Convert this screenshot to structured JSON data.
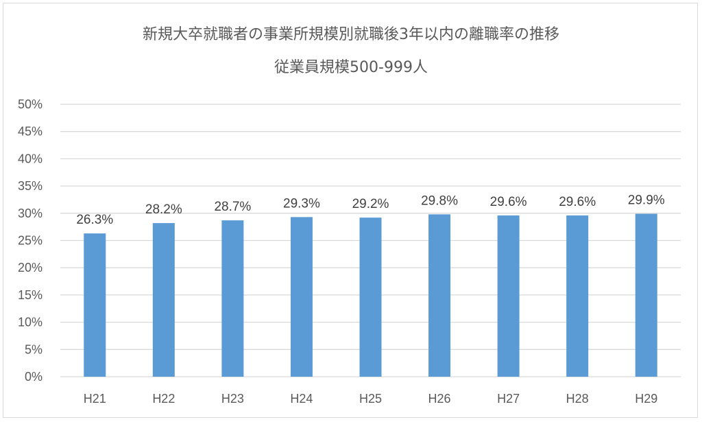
{
  "chart_data": {
    "type": "bar",
    "title": "新規大卒就職者の事業所規模別就職後3年以内の離職率の推移",
    "subtitle": "従業員規模500-999人",
    "categories": [
      "H21",
      "H22",
      "H23",
      "H24",
      "H25",
      "H26",
      "H27",
      "H28",
      "H29"
    ],
    "values": [
      26.3,
      28.2,
      28.7,
      29.3,
      29.2,
      29.8,
      29.6,
      29.6,
      29.9
    ],
    "data_labels": [
      "26.3%",
      "28.2%",
      "28.7%",
      "29.3%",
      "29.2%",
      "29.8%",
      "29.6%",
      "29.6%",
      "29.9%"
    ],
    "y_ticks": [
      "0%",
      "5%",
      "10%",
      "15%",
      "20%",
      "25%",
      "30%",
      "35%",
      "40%",
      "45%",
      "50%"
    ],
    "ylim": [
      0,
      50
    ],
    "grid": true,
    "bar_color": "#5b9bd5",
    "grid_color": "#d9d9d9",
    "text_color": "#595959"
  }
}
